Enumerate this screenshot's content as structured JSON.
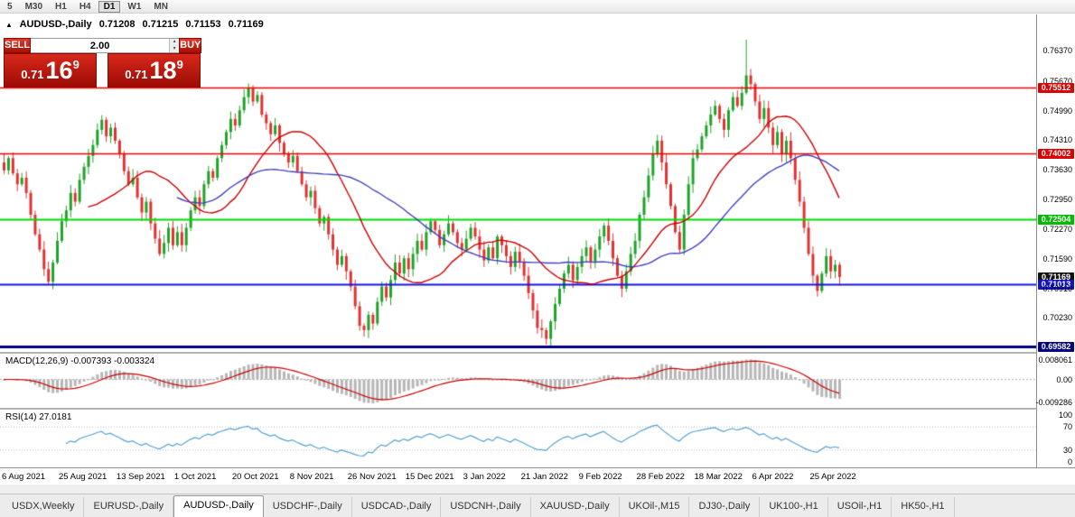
{
  "toolbar": {
    "timeframes": [
      "5",
      "M30",
      "H1",
      "H4",
      "D1",
      "W1",
      "MN"
    ],
    "active": "D1"
  },
  "chart_header": {
    "collapse_icon": "▲",
    "title": "AUDUSD-,Daily",
    "open": "0.71208",
    "high": "0.71215",
    "low": "0.71153",
    "close": "0.71169"
  },
  "trade_panel": {
    "sell_label": "SELL",
    "buy_label": "BUY",
    "volume": "2.00",
    "bid": {
      "prefix": "0.71",
      "big": "16",
      "sup": "9"
    },
    "ask": {
      "prefix": "0.71",
      "big": "18",
      "sup": "9"
    }
  },
  "price_axis": {
    "labels": [
      {
        "text": "0.76370",
        "price": 0.7637
      },
      {
        "text": "0.75670",
        "price": 0.7567
      },
      {
        "text": "0.75512",
        "price": 0.75512,
        "bg": "#dd0000"
      },
      {
        "text": "0.74990",
        "price": 0.7499
      },
      {
        "text": "0.74310",
        "price": 0.7431
      },
      {
        "text": "0.74002",
        "price": 0.74002,
        "bg": "#dd0000"
      },
      {
        "text": "0.73630",
        "price": 0.7363
      },
      {
        "text": "0.72950",
        "price": 0.7295
      },
      {
        "text": "0.72504",
        "price": 0.72504,
        "bg": "#00bb00"
      },
      {
        "text": "0.72270",
        "price": 0.7227
      },
      {
        "text": "0.71590",
        "price": 0.7159
      },
      {
        "text": "0.71169",
        "price": 0.71169,
        "bg": "#111111"
      },
      {
        "text": "0.71013",
        "price": 0.71013,
        "bg": "#1313cc"
      },
      {
        "text": "0.70910",
        "price": 0.7091
      },
      {
        "text": "0.70230",
        "price": 0.7023
      },
      {
        "text": "0.69582",
        "price": 0.69582,
        "bg": "#000080"
      }
    ]
  },
  "macd_panel": {
    "label": "MACD(12,26,9) -0.007393 -0.003324",
    "axis": [
      {
        "text": "0.008061",
        "value": 0.008061
      },
      {
        "text": "0.00",
        "value": 0
      },
      {
        "text": "-0.009286",
        "value": -0.009286
      }
    ]
  },
  "rsi_panel": {
    "label": "RSI(14) 27.0181",
    "axis": [
      {
        "text": "100",
        "value": 100
      },
      {
        "text": "70",
        "value": 70
      },
      {
        "text": "30",
        "value": 30
      },
      {
        "text": "0",
        "value": 0
      }
    ],
    "levels": [
      70,
      30
    ]
  },
  "time_axis": {
    "labels": [
      "6 Aug 2021",
      "25 Aug 2021",
      "13 Sep 2021",
      "1 Oct 2021",
      "20 Oct 2021",
      "8 Nov 2021",
      "26 Nov 2021",
      "15 Dec 2021",
      "3 Jan 2022",
      "21 Jan 2022",
      "9 Feb 2022",
      "28 Feb 2022",
      "18 Mar 2022",
      "6 Apr 2022",
      "25 Apr 2022"
    ]
  },
  "tabs": {
    "active_index": 2,
    "items": [
      "USDX,Weekly",
      "EURUSD-,Daily",
      "AUDUSD-,Daily",
      "USDCHF-,Daily",
      "USDCAD-,Daily",
      "USDCNH-,Daily",
      "XAUUSD-,Daily",
      "UKOil-,M15",
      "DJ30-,Daily",
      "UK100-,H1",
      "USOil-,H1",
      "HK50-,H1"
    ]
  },
  "chart_data": {
    "type": "candlestick",
    "symbol": "AUDUSD-",
    "timeframe": "Daily",
    "ohlc_current": {
      "open": 0.71208,
      "high": 0.71215,
      "low": 0.71153,
      "close": 0.71169
    },
    "price_range": {
      "top": 0.772,
      "bottom": 0.6945
    },
    "open_first": 0.738,
    "closes": [
      0.7362,
      0.739,
      0.7355,
      0.733,
      0.7345,
      0.731,
      0.726,
      0.7215,
      0.718,
      0.7135,
      0.7106,
      0.715,
      0.72,
      0.7245,
      0.727,
      0.731,
      0.729,
      0.734,
      0.737,
      0.7395,
      0.742,
      0.7455,
      0.7478,
      0.744,
      0.746,
      0.743,
      0.74,
      0.736,
      0.733,
      0.7345,
      0.73,
      0.7265,
      0.729,
      0.724,
      0.7205,
      0.717,
      0.7195,
      0.723,
      0.719,
      0.722,
      0.719,
      0.723,
      0.727,
      0.73,
      0.728,
      0.733,
      0.736,
      0.7345,
      0.739,
      0.742,
      0.745,
      0.748,
      0.7465,
      0.75,
      0.753,
      0.755,
      0.752,
      0.7535,
      0.749,
      0.747,
      0.7445,
      0.7465,
      0.7425,
      0.74,
      0.738,
      0.7395,
      0.736,
      0.733,
      0.73,
      0.7315,
      0.7275,
      0.724,
      0.7255,
      0.7215,
      0.718,
      0.7145,
      0.7165,
      0.713,
      0.7095,
      0.705,
      0.7005,
      0.6995,
      0.703,
      0.701,
      0.706,
      0.7095,
      0.707,
      0.711,
      0.715,
      0.7125,
      0.716,
      0.7135,
      0.717,
      0.72,
      0.718,
      0.722,
      0.7245,
      0.7225,
      0.719,
      0.7215,
      0.724,
      0.722,
      0.7195,
      0.718,
      0.7205,
      0.723,
      0.721,
      0.718,
      0.7155,
      0.7185,
      0.716,
      0.721,
      0.719,
      0.7165,
      0.714,
      0.7175,
      0.715,
      0.712,
      0.708,
      0.704,
      0.7,
      0.6995,
      0.6975,
      0.7015,
      0.7055,
      0.709,
      0.7125,
      0.7145,
      0.711,
      0.714,
      0.7165,
      0.7185,
      0.715,
      0.718,
      0.721,
      0.7235,
      0.72,
      0.716,
      0.712,
      0.709,
      0.713,
      0.717,
      0.72,
      0.726,
      0.73,
      0.735,
      0.74,
      0.743,
      0.738,
      0.733,
      0.728,
      0.722,
      0.718,
      0.726,
      0.733,
      0.739,
      0.741,
      0.744,
      0.7465,
      0.749,
      0.751,
      0.748,
      0.7455,
      0.75,
      0.753,
      0.751,
      0.754,
      0.758,
      0.756,
      0.752,
      0.748,
      0.7505,
      0.746,
      0.742,
      0.745,
      0.74,
      0.743,
      0.739,
      0.734,
      0.729,
      0.723,
      0.717,
      0.712,
      0.7085,
      0.7125,
      0.7165,
      0.713,
      0.7145,
      0.71169
    ],
    "wick_overrides": {
      "10": {
        "low": 0.71
      },
      "122": {
        "low": 0.6962
      },
      "167": {
        "high": 0.7662
      }
    },
    "hlines": [
      {
        "price": 0.75512,
        "color": "#f00000",
        "width": 1.5
      },
      {
        "price": 0.74002,
        "color": "#f00000",
        "width": 1.5
      },
      {
        "price": 0.72504,
        "color": "#00dc00",
        "width": 2
      },
      {
        "price": 0.71013,
        "color": "#1515e6",
        "width": 2
      },
      {
        "price": 0.69582,
        "color": "#000080",
        "width": 3
      }
    ],
    "ma": [
      {
        "period": 20,
        "color": "#cc0000"
      },
      {
        "period": 40,
        "color": "#4040bf"
      }
    ],
    "colors": {
      "up": "#1fa32a",
      "down": "#e03232",
      "macd_hist": "#b6b6b6",
      "macd_signal": "#cc0000",
      "rsi": "#56a0d3"
    },
    "macd": {
      "fast": 12,
      "slow": 26,
      "signal": 9,
      "current_macd": -0.007393,
      "current_signal": -0.003324,
      "render_top": 0.0105,
      "render_bottom": -0.0115
    },
    "rsi": {
      "period": 14,
      "current": 27.0181
    },
    "candles_per_tick": 13
  }
}
